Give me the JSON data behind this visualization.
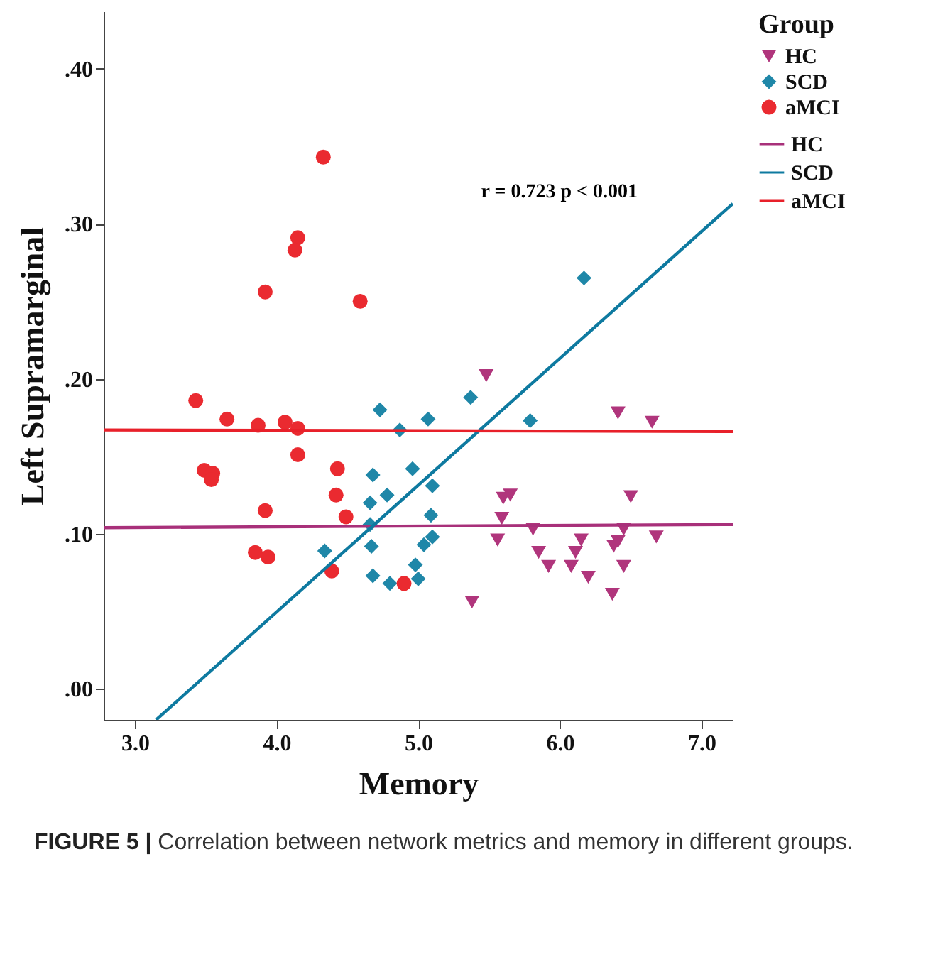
{
  "chart_data": {
    "type": "scatter",
    "xlabel": "Memory",
    "ylabel": "Left Supramarginal",
    "legend_title": "Group",
    "legend": "right",
    "xlim": [
      2.78,
      7.22
    ],
    "ylim": [
      -0.02,
      0.437
    ],
    "xticks": [
      {
        "value": 3,
        "label": "3.0"
      },
      {
        "value": 4,
        "label": "4.0"
      },
      {
        "value": 5,
        "label": "5.0"
      },
      {
        "value": 6,
        "label": "6.0"
      },
      {
        "value": 7,
        "label": "7.0"
      }
    ],
    "yticks": [
      {
        "value": 0,
        "label": ".00"
      },
      {
        "value": 0.1,
        "label": ".10"
      },
      {
        "value": 0.2,
        "label": ".20"
      },
      {
        "value": 0.3,
        "label": ".30"
      },
      {
        "value": 0.4,
        "label": ".40"
      }
    ],
    "annotations": [
      "r = 0.723  p < 0.001",
      "FIGURE 5 | Correlation between network metrics and memory in different groups."
    ],
    "series": [
      {
        "name": "HC",
        "marker": "triangle",
        "color": "#b0357c",
        "x": [
          5.48,
          6.41,
          6.65,
          5.6,
          5.65,
          6.5,
          5.59,
          5.81,
          6.45,
          5.56,
          6.15,
          6.41,
          6.68,
          5.85,
          6.11,
          6.38,
          5.92,
          6.08,
          6.45,
          6.2,
          6.37,
          5.38
        ],
        "values": [
          0.202,
          0.178,
          0.172,
          0.123,
          0.125,
          0.124,
          0.11,
          0.103,
          0.103,
          0.096,
          0.096,
          0.095,
          0.098,
          0.088,
          0.088,
          0.092,
          0.079,
          0.079,
          0.079,
          0.072,
          0.061,
          0.056
        ]
      },
      {
        "name": "SCD",
        "marker": "diamond",
        "color": "#1f87a8",
        "x": [
          4.73,
          4.87,
          5.07,
          4.68,
          4.96,
          4.78,
          4.66,
          4.66,
          5.09,
          5.1,
          5.04,
          4.34,
          4.67,
          4.68,
          4.8,
          4.98,
          5.0,
          6.17,
          5.37,
          5.79,
          5.1
        ],
        "values": [
          0.18,
          0.167,
          0.174,
          0.138,
          0.142,
          0.125,
          0.12,
          0.106,
          0.112,
          0.098,
          0.093,
          0.089,
          0.092,
          0.073,
          0.068,
          0.08,
          0.071,
          0.265,
          0.188,
          0.173,
          0.131
        ]
      },
      {
        "name": "aMCI",
        "marker": "circle",
        "color": "#ea2a30",
        "x": [
          4.33,
          4.15,
          4.13,
          3.92,
          4.59,
          3.43,
          3.65,
          3.87,
          4.06,
          4.15,
          4.15,
          3.49,
          3.55,
          3.54,
          4.43,
          4.42,
          4.49,
          3.92,
          3.85,
          3.94,
          4.39,
          4.9
        ],
        "values": [
          0.343,
          0.291,
          0.283,
          0.256,
          0.25,
          0.186,
          0.174,
          0.17,
          0.172,
          0.168,
          0.151,
          0.141,
          0.139,
          0.135,
          0.142,
          0.125,
          0.111,
          0.115,
          0.088,
          0.085,
          0.076,
          0.068
        ]
      },
      {
        "name": "HC",
        "type": "line",
        "color": "#a8307a",
        "x": [
          2.78,
          7.22
        ],
        "values": [
          0.104,
          0.106
        ]
      },
      {
        "name": "SCD",
        "type": "line",
        "color": "#0e7aa0",
        "x": [
          3.15,
          7.22
        ],
        "values": [
          -0.02,
          0.313
        ]
      },
      {
        "name": "aMCI",
        "type": "line",
        "color": "#e8202a",
        "x": [
          2.78,
          7.22
        ],
        "values": [
          0.167,
          0.166
        ]
      }
    ]
  }
}
